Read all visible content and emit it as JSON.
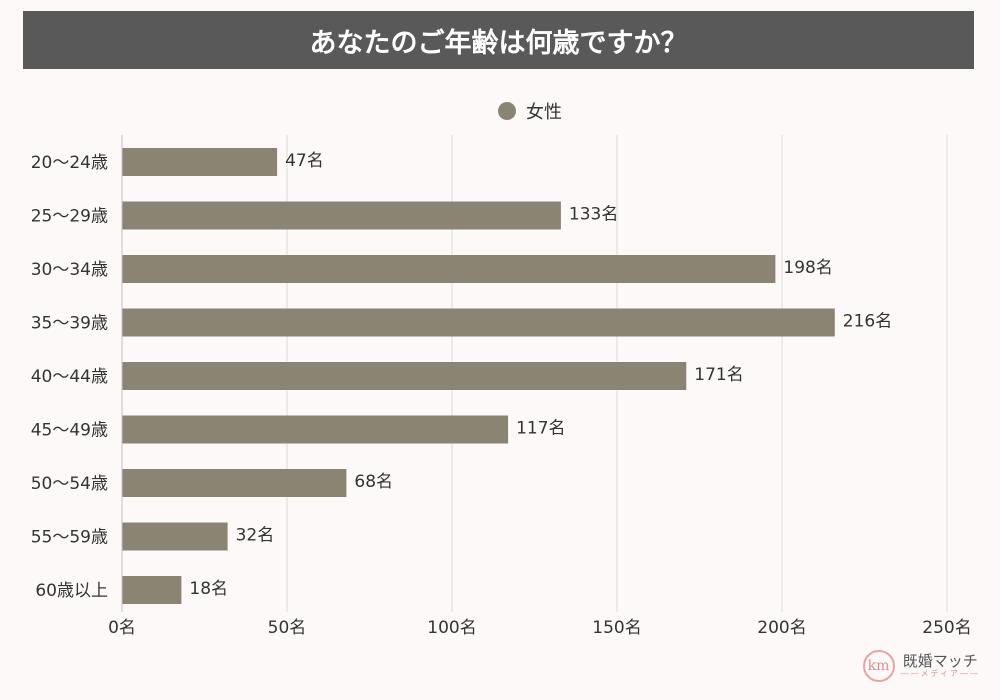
{
  "title": "あなたのご年齢は何歳ですか？",
  "colors": {
    "bar": "#8c8473",
    "title_bg": "#595959",
    "grid": "#d9d9d9"
  },
  "logo": {
    "mark": "km",
    "name": "既婚マッチ",
    "sub": "――メディア――"
  },
  "chart_data": {
    "type": "bar",
    "orientation": "horizontal",
    "title": "あなたのご年齢は何歳ですか？",
    "legend": [
      "女性"
    ],
    "legend_position": "top",
    "categories": [
      "20〜24歳",
      "25〜29歳",
      "30〜34歳",
      "35〜39歳",
      "40〜44歳",
      "45〜49歳",
      "50〜54歳",
      "55〜59歳",
      "60歳以上"
    ],
    "series": [
      {
        "name": "女性",
        "values": [
          47,
          133,
          198,
          216,
          171,
          117,
          68,
          32,
          18
        ]
      }
    ],
    "value_suffix": "名",
    "data_labels": [
      "47名",
      "133名",
      "198名",
      "216名",
      "171名",
      "117名",
      "68名",
      "32名",
      "18名"
    ],
    "xlim": [
      0,
      250
    ],
    "x_ticks": [
      0,
      50,
      100,
      150,
      200,
      250
    ],
    "x_tick_labels": [
      "0名",
      "50名",
      "100名",
      "150名",
      "200名",
      "250名"
    ],
    "grid": true
  }
}
